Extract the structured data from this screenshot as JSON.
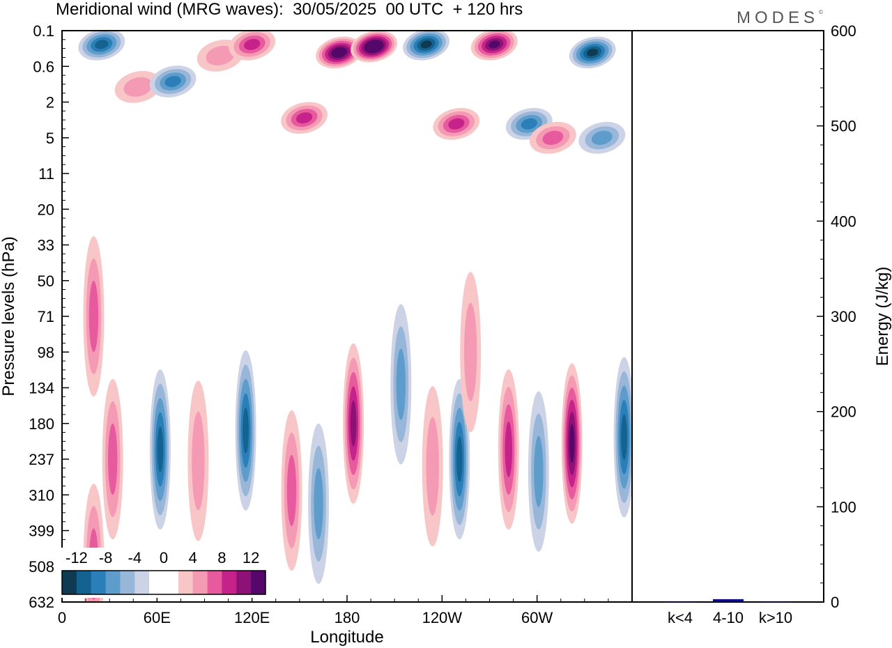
{
  "header": {
    "title": "Meridional wind (MRG waves):  30/05/2025  00 UTC  + 120 hrs",
    "brand": "MODES",
    "brand_mark": "©"
  },
  "chart_data": [
    {
      "type": "heatmap",
      "xlabel": "Longitude",
      "ylabel": "Pressure levels (hPa)",
      "x_ticks": [
        "0",
        "60E",
        "120E",
        "180",
        "120W",
        "60W"
      ],
      "y_ticks": [
        "0.1",
        "0.6",
        "2",
        "5",
        "11",
        "20",
        "33",
        "50",
        "71",
        "98",
        "134",
        "180",
        "237",
        "310",
        "399",
        "508",
        "632"
      ],
      "colorbar": {
        "labels": [
          "-12",
          "-8",
          "-4",
          "0",
          "4",
          "8",
          "12"
        ],
        "levels": [
          -14,
          -12,
          -10,
          -8,
          -6,
          -4,
          -2,
          0,
          2,
          4,
          6,
          8,
          10,
          12,
          14
        ],
        "colors": [
          "#0e3a52",
          "#14628f",
          "#2a7fb8",
          "#5d9ccb",
          "#98b6d8",
          "#cdd3e6",
          "#ffffff",
          "#ffffff",
          "#f8c6c6",
          "#f59ab4",
          "#e75a9d",
          "#c5238a",
          "#8e1276",
          "#55086a"
        ]
      },
      "features": [
        {
          "lon": 25,
          "level": 0.2,
          "value": -10
        },
        {
          "lon": 100,
          "level": 0.35,
          "value": 4
        },
        {
          "lon": 120,
          "level": 0.2,
          "value": 9
        },
        {
          "lon": 175,
          "level": 0.3,
          "value": 14
        },
        {
          "lon": 197,
          "level": 0.22,
          "value": 16
        },
        {
          "lon": 230,
          "level": 0.2,
          "value": -13
        },
        {
          "lon": 273,
          "level": 0.2,
          "value": 13
        },
        {
          "lon": 335,
          "level": 0.3,
          "value": -12
        },
        {
          "lon": 48,
          "level": 1.2,
          "value": 5
        },
        {
          "lon": 70,
          "level": 1.0,
          "value": -9
        },
        {
          "lon": 153,
          "level": 3.0,
          "value": 9
        },
        {
          "lon": 249,
          "level": 3.5,
          "value": 9
        },
        {
          "lon": 295,
          "level": 3.5,
          "value": -8
        },
        {
          "lon": 310,
          "level": 5.0,
          "value": 7
        },
        {
          "lon": 341,
          "level": 5.0,
          "value": -6
        },
        {
          "lon": 20,
          "level": 71,
          "value": 7
        },
        {
          "lon": 20,
          "level": 500,
          "value": 6
        },
        {
          "lon": 32,
          "level": 237,
          "value": 6
        },
        {
          "lon": 62,
          "level": 220,
          "value": -11
        },
        {
          "lon": 86,
          "level": 240,
          "value": 5
        },
        {
          "lon": 116,
          "level": 190,
          "value": -11
        },
        {
          "lon": 145,
          "level": 300,
          "value": 7
        },
        {
          "lon": 162,
          "level": 330,
          "value": -7
        },
        {
          "lon": 184,
          "level": 180,
          "value": 11
        },
        {
          "lon": 214,
          "level": 130,
          "value": -6
        },
        {
          "lon": 234,
          "level": 250,
          "value": 4
        },
        {
          "lon": 251,
          "level": 237,
          "value": -11
        },
        {
          "lon": 258,
          "level": 98,
          "value": 5
        },
        {
          "lon": 282,
          "level": 220,
          "value": 8
        },
        {
          "lon": 301,
          "level": 260,
          "value": -6
        },
        {
          "lon": 322,
          "level": 210,
          "value": 13
        },
        {
          "lon": 355,
          "level": 200,
          "value": -10
        }
      ]
    },
    {
      "type": "bar",
      "categories": [
        "k<4",
        "4-10",
        "k>10"
      ],
      "values": [
        0,
        3,
        0
      ],
      "ylabel": "Energy (J/kg)",
      "ylim": [
        0,
        600
      ],
      "y_ticks": [
        "0",
        "100",
        "200",
        "300",
        "400",
        "500",
        "600"
      ],
      "bar_color": "#0d0d8a"
    }
  ]
}
